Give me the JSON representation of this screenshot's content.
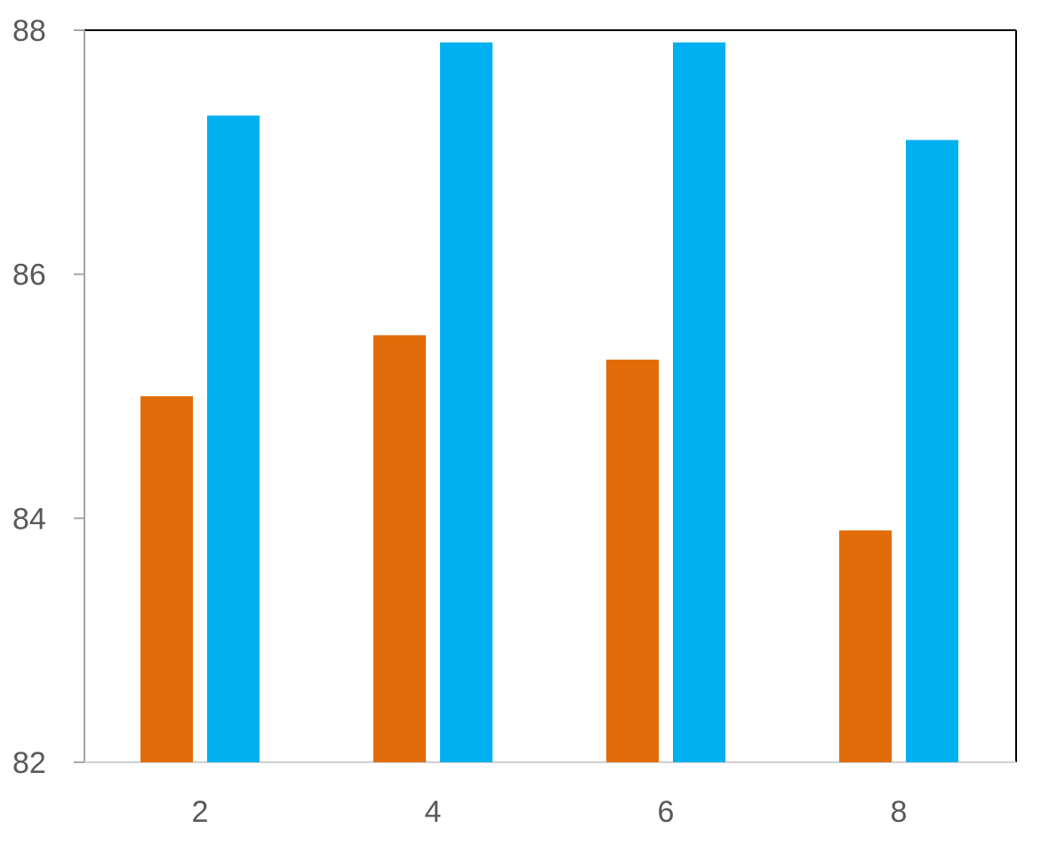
{
  "chart_data": {
    "type": "bar",
    "categories": [
      "2",
      "4",
      "6",
      "8"
    ],
    "series": [
      {
        "values": [
          85.0,
          85.5,
          85.3,
          83.9
        ],
        "color": "#E36C0A"
      },
      {
        "values": [
          87.3,
          87.9,
          87.9,
          87.1
        ],
        "color": "#00B0F0"
      }
    ],
    "ylim": [
      82,
      88
    ],
    "yticks": [
      "82",
      "84",
      "86",
      "88"
    ],
    "grid": false,
    "legend": "none"
  }
}
